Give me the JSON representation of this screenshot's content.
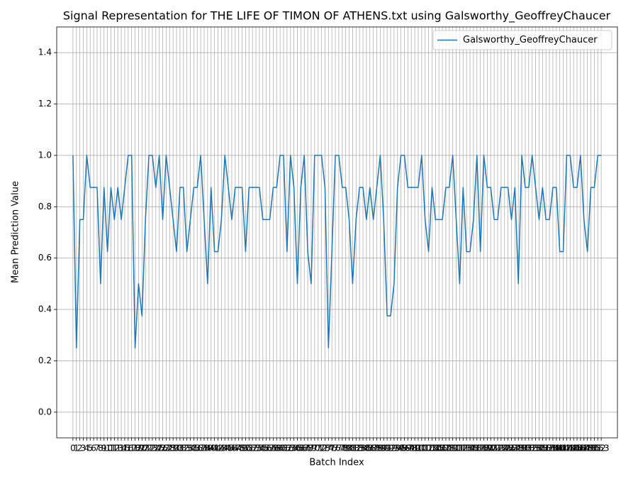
{
  "chart_data": {
    "type": "line",
    "title": "Signal Representation for THE LIFE OF TIMON OF ATHENS.txt using Galsworthy_GeoffreyChaucer",
    "xlabel": "Batch Index",
    "ylabel": "Mean Prediction Value",
    "x": [
      0,
      1,
      2,
      3,
      4,
      5,
      6,
      7,
      8,
      9,
      10,
      11,
      12,
      13,
      14,
      15,
      16,
      17,
      18,
      19,
      20,
      21,
      22,
      23,
      24,
      25,
      26,
      27,
      28,
      29,
      30,
      31,
      32,
      33,
      34,
      35,
      36,
      37,
      38,
      39,
      40,
      41,
      42,
      43,
      44,
      45,
      46,
      47,
      48,
      49,
      50,
      51,
      52,
      53,
      54,
      55,
      56,
      57,
      58,
      59,
      60,
      61,
      62,
      63,
      64,
      65,
      66,
      67,
      68,
      69,
      70,
      71,
      72,
      73,
      74,
      75,
      76,
      77,
      78,
      79,
      80,
      81,
      82,
      83,
      84,
      85,
      86,
      87,
      88,
      89,
      90,
      91,
      92,
      93,
      94,
      95,
      96,
      97,
      98,
      99,
      100,
      101,
      102,
      103,
      104,
      105,
      106,
      107,
      108,
      109,
      110,
      111,
      112,
      113,
      114,
      115,
      116,
      117,
      118,
      119,
      120,
      121,
      122,
      123,
      124,
      125,
      126,
      127,
      128,
      129,
      130,
      131,
      132,
      133,
      134,
      135,
      136,
      137,
      138,
      139,
      140,
      141,
      142,
      143,
      144,
      145,
      146,
      147,
      148,
      149,
      150,
      151,
      152,
      153
    ],
    "series": [
      {
        "name": "Galsworthy_GeoffreyChaucer",
        "color": "#1f77b4",
        "values": [
          1.0,
          0.25,
          0.75,
          0.75,
          1.0,
          0.875,
          0.875,
          0.875,
          0.5,
          0.875,
          0.625,
          0.875,
          0.75,
          0.875,
          0.75,
          0.875,
          1.0,
          1.0,
          0.25,
          0.5,
          0.375,
          0.75,
          1.0,
          1.0,
          0.875,
          1.0,
          0.75,
          1.0,
          0.875,
          0.75,
          0.625,
          0.875,
          0.875,
          0.625,
          0.75,
          0.875,
          0.875,
          1.0,
          0.75,
          0.5,
          0.875,
          0.625,
          0.625,
          0.75,
          1.0,
          0.875,
          0.75,
          0.875,
          0.875,
          0.875,
          0.625,
          0.875,
          0.875,
          0.875,
          0.875,
          0.75,
          0.75,
          0.75,
          0.875,
          0.875,
          1.0,
          1.0,
          0.625,
          1.0,
          0.875,
          0.5,
          0.875,
          1.0,
          0.625,
          0.5,
          1.0,
          1.0,
          1.0,
          0.875,
          0.25,
          0.625,
          1.0,
          1.0,
          0.875,
          0.875,
          0.75,
          0.5,
          0.75,
          0.875,
          0.875,
          0.75,
          0.875,
          0.75,
          0.875,
          1.0,
          0.75,
          0.375,
          0.375,
          0.5,
          0.875,
          1.0,
          1.0,
          0.875,
          0.875,
          0.875,
          0.875,
          1.0,
          0.75,
          0.625,
          0.875,
          0.75,
          0.75,
          0.75,
          0.875,
          0.875,
          1.0,
          0.75,
          0.5,
          0.875,
          0.625,
          0.625,
          0.75,
          1.0,
          0.625,
          1.0,
          0.875,
          0.875,
          0.75,
          0.75,
          0.875,
          0.875,
          0.875,
          0.75,
          0.875,
          0.5,
          1.0,
          0.875,
          0.875,
          1.0,
          0.875,
          0.75,
          0.875,
          0.75,
          0.75,
          0.875,
          0.875,
          0.625,
          0.625,
          1.0,
          1.0,
          0.875,
          0.875,
          1.0,
          0.75,
          0.625,
          0.875,
          0.875,
          1.0,
          1.0
        ]
      }
    ],
    "xlim": [
      -4.7,
      157.7
    ],
    "xticks": [
      0,
      1,
      2,
      3,
      4,
      5,
      6,
      7,
      8,
      9,
      10,
      11,
      12,
      13,
      14,
      15,
      16,
      17,
      18,
      19,
      20,
      21,
      22,
      23,
      24,
      25,
      26,
      27,
      28,
      29,
      30,
      31,
      32,
      33,
      34,
      35,
      36,
      37,
      38,
      39,
      40,
      41,
      42,
      43,
      44,
      45,
      46,
      47,
      48,
      49,
      50,
      51,
      52,
      53,
      54,
      55,
      56,
      57,
      58,
      59,
      60,
      61,
      62,
      63,
      64,
      65,
      66,
      67,
      68,
      69,
      70,
      71,
      72,
      73,
      74,
      75,
      76,
      77,
      78,
      79,
      80,
      81,
      82,
      83,
      84,
      85,
      86,
      87,
      88,
      89,
      90,
      91,
      92,
      93,
      94,
      95,
      96,
      97,
      98,
      99,
      100,
      101,
      102,
      103,
      104,
      105,
      106,
      107,
      108,
      109,
      110,
      111,
      112,
      113,
      114,
      115,
      116,
      117,
      118,
      119,
      120,
      121,
      122,
      123,
      124,
      125,
      126,
      127,
      128,
      129,
      130,
      131,
      132,
      133,
      134,
      135,
      136,
      137,
      138,
      139,
      140,
      141,
      142,
      143,
      144,
      145,
      146,
      147,
      148,
      149,
      150,
      151,
      152,
      153
    ],
    "ylim": [
      -0.1,
      1.5
    ],
    "yticks": [
      {
        "value": 0,
        "label": "0.0"
      },
      {
        "value": 0.2,
        "label": "0.2"
      },
      {
        "value": 0.4,
        "label": "0.4"
      },
      {
        "value": 0.6,
        "label": "0.6"
      },
      {
        "value": 0.8,
        "label": "0.8"
      },
      {
        "value": 1.0,
        "label": "1.0"
      },
      {
        "value": 1.2,
        "label": "1.2"
      },
      {
        "value": 1.4,
        "label": "1.4"
      }
    ],
    "grid": true,
    "legend": "upper right"
  }
}
